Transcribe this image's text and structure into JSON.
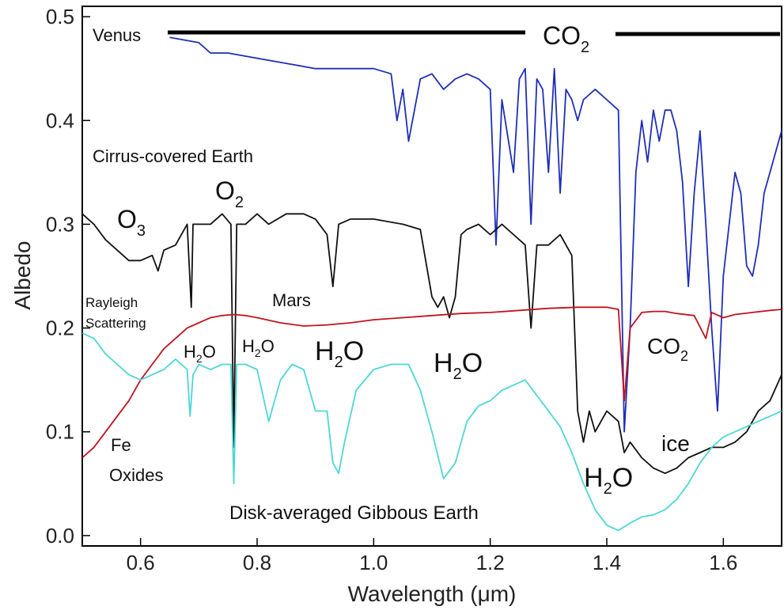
{
  "chart_data": {
    "type": "line",
    "xlabel": "Wavelength (μm)",
    "ylabel": "Albedo",
    "xlim": [
      0.5,
      1.7
    ],
    "ylim": [
      -0.01,
      0.51
    ],
    "xticks": [
      0.6,
      0.8,
      1.0,
      1.2,
      1.4,
      1.6
    ],
    "xtick_labels": [
      "0.6",
      "0.8",
      "1.0",
      "1.2",
      "1.4",
      "1.6"
    ],
    "yticks": [
      0.0,
      0.1,
      0.2,
      0.3,
      0.4,
      0.5
    ],
    "ytick_labels": [
      "0.0",
      "0.1",
      "0.2",
      "0.3",
      "0.4",
      "0.5"
    ],
    "grid": false,
    "series": [
      {
        "name": "Venus",
        "color": "#1f2fb8",
        "x": [
          0.65,
          0.7,
          0.72,
          0.75,
          0.8,
          0.85,
          0.9,
          0.95,
          1.0,
          1.03,
          1.04,
          1.05,
          1.06,
          1.08,
          1.1,
          1.12,
          1.14,
          1.16,
          1.18,
          1.2,
          1.21,
          1.22,
          1.24,
          1.25,
          1.26,
          1.27,
          1.28,
          1.29,
          1.3,
          1.31,
          1.32,
          1.33,
          1.34,
          1.35,
          1.36,
          1.38,
          1.4,
          1.42,
          1.43,
          1.44,
          1.45,
          1.46,
          1.47,
          1.48,
          1.49,
          1.5,
          1.51,
          1.52,
          1.53,
          1.54,
          1.55,
          1.56,
          1.57,
          1.58,
          1.59,
          1.6,
          1.61,
          1.62,
          1.63,
          1.64,
          1.65,
          1.66,
          1.67,
          1.68,
          1.69,
          1.7
        ],
        "y": [
          0.48,
          0.475,
          0.465,
          0.465,
          0.46,
          0.455,
          0.45,
          0.45,
          0.45,
          0.445,
          0.4,
          0.43,
          0.38,
          0.44,
          0.445,
          0.43,
          0.44,
          0.445,
          0.44,
          0.43,
          0.28,
          0.42,
          0.35,
          0.44,
          0.45,
          0.3,
          0.44,
          0.43,
          0.35,
          0.45,
          0.33,
          0.43,
          0.42,
          0.4,
          0.42,
          0.43,
          0.42,
          0.41,
          0.1,
          0.2,
          0.35,
          0.4,
          0.36,
          0.41,
          0.38,
          0.41,
          0.41,
          0.39,
          0.34,
          0.24,
          0.33,
          0.39,
          0.3,
          0.2,
          0.12,
          0.25,
          0.3,
          0.35,
          0.33,
          0.26,
          0.25,
          0.28,
          0.33,
          0.35,
          0.37,
          0.39
        ]
      },
      {
        "name": "Cirrus-covered Earth",
        "color": "#111111",
        "x": [
          0.5,
          0.52,
          0.54,
          0.56,
          0.58,
          0.6,
          0.62,
          0.63,
          0.64,
          0.66,
          0.68,
          0.687,
          0.69,
          0.7,
          0.72,
          0.74,
          0.755,
          0.76,
          0.765,
          0.78,
          0.8,
          0.82,
          0.85,
          0.88,
          0.9,
          0.92,
          0.93,
          0.94,
          0.96,
          1.0,
          1.05,
          1.08,
          1.1,
          1.11,
          1.12,
          1.13,
          1.14,
          1.15,
          1.16,
          1.18,
          1.2,
          1.22,
          1.24,
          1.26,
          1.27,
          1.28,
          1.3,
          1.32,
          1.34,
          1.35,
          1.36,
          1.37,
          1.38,
          1.4,
          1.42,
          1.43,
          1.44,
          1.46,
          1.48,
          1.5,
          1.52,
          1.54,
          1.56,
          1.58,
          1.6,
          1.62,
          1.64,
          1.66,
          1.68,
          1.7
        ],
        "y": [
          0.31,
          0.3,
          0.285,
          0.275,
          0.265,
          0.265,
          0.27,
          0.255,
          0.275,
          0.28,
          0.3,
          0.22,
          0.3,
          0.3,
          0.3,
          0.31,
          0.3,
          0.085,
          0.3,
          0.3,
          0.31,
          0.3,
          0.31,
          0.31,
          0.305,
          0.29,
          0.24,
          0.3,
          0.305,
          0.305,
          0.3,
          0.295,
          0.23,
          0.22,
          0.23,
          0.21,
          0.23,
          0.29,
          0.295,
          0.3,
          0.29,
          0.3,
          0.29,
          0.28,
          0.2,
          0.28,
          0.28,
          0.29,
          0.27,
          0.12,
          0.09,
          0.12,
          0.1,
          0.12,
          0.11,
          0.08,
          0.09,
          0.075,
          0.065,
          0.06,
          0.065,
          0.075,
          0.08,
          0.085,
          0.085,
          0.09,
          0.1,
          0.12,
          0.13,
          0.155
        ]
      },
      {
        "name": "Mars",
        "color": "#c0141e",
        "x": [
          0.5,
          0.52,
          0.54,
          0.56,
          0.58,
          0.6,
          0.62,
          0.64,
          0.66,
          0.68,
          0.7,
          0.72,
          0.74,
          0.76,
          0.78,
          0.8,
          0.84,
          0.88,
          0.92,
          0.96,
          1.0,
          1.05,
          1.1,
          1.15,
          1.2,
          1.25,
          1.3,
          1.35,
          1.4,
          1.42,
          1.43,
          1.44,
          1.46,
          1.48,
          1.5,
          1.52,
          1.55,
          1.57,
          1.58,
          1.6,
          1.62,
          1.65,
          1.68,
          1.7
        ],
        "y": [
          0.075,
          0.085,
          0.1,
          0.115,
          0.13,
          0.15,
          0.165,
          0.18,
          0.19,
          0.2,
          0.205,
          0.21,
          0.212,
          0.213,
          0.212,
          0.21,
          0.205,
          0.202,
          0.203,
          0.205,
          0.208,
          0.21,
          0.212,
          0.214,
          0.215,
          0.217,
          0.219,
          0.22,
          0.22,
          0.218,
          0.13,
          0.2,
          0.215,
          0.216,
          0.216,
          0.214,
          0.212,
          0.19,
          0.215,
          0.21,
          0.213,
          0.215,
          0.217,
          0.218
        ]
      },
      {
        "name": "Disk-averaged Gibbous Earth",
        "color": "#4fd6d6",
        "x": [
          0.5,
          0.52,
          0.54,
          0.56,
          0.58,
          0.6,
          0.62,
          0.64,
          0.66,
          0.68,
          0.685,
          0.69,
          0.7,
          0.72,
          0.74,
          0.755,
          0.76,
          0.765,
          0.78,
          0.8,
          0.82,
          0.84,
          0.86,
          0.88,
          0.9,
          0.92,
          0.93,
          0.94,
          0.95,
          0.97,
          1.0,
          1.03,
          1.06,
          1.08,
          1.1,
          1.12,
          1.14,
          1.16,
          1.18,
          1.2,
          1.22,
          1.24,
          1.26,
          1.28,
          1.3,
          1.32,
          1.34,
          1.36,
          1.38,
          1.4,
          1.42,
          1.44,
          1.46,
          1.48,
          1.5,
          1.52,
          1.54,
          1.56,
          1.58,
          1.6,
          1.62,
          1.64,
          1.66,
          1.68,
          1.7
        ],
        "y": [
          0.195,
          0.19,
          0.175,
          0.165,
          0.155,
          0.15,
          0.155,
          0.16,
          0.17,
          0.16,
          0.115,
          0.155,
          0.165,
          0.16,
          0.165,
          0.165,
          0.05,
          0.165,
          0.165,
          0.16,
          0.11,
          0.15,
          0.165,
          0.16,
          0.12,
          0.12,
          0.07,
          0.06,
          0.09,
          0.14,
          0.16,
          0.165,
          0.165,
          0.14,
          0.1,
          0.055,
          0.07,
          0.11,
          0.125,
          0.13,
          0.14,
          0.145,
          0.15,
          0.135,
          0.12,
          0.105,
          0.08,
          0.05,
          0.025,
          0.01,
          0.005,
          0.012,
          0.018,
          0.02,
          0.025,
          0.035,
          0.05,
          0.07,
          0.085,
          0.095,
          0.1,
          0.105,
          0.11,
          0.115,
          0.12
        ]
      }
    ],
    "annotations": [
      {
        "id": "venus",
        "text": "Venus",
        "color": "#3a6fc8"
      },
      {
        "id": "cirrus",
        "text": "Cirrus-covered Earth",
        "color": "#111111"
      },
      {
        "id": "mars",
        "text": "Mars",
        "color": "#c0141e"
      },
      {
        "id": "gibbous",
        "text": "Disk-averaged Gibbous Earth",
        "color": "#6fe0e0"
      },
      {
        "id": "rayleigh1",
        "text": "Rayleigh",
        "color": "#111111"
      },
      {
        "id": "rayleigh2",
        "text": "Scattering",
        "color": "#111111"
      },
      {
        "id": "fe1",
        "text": "Fe",
        "color": "#111111"
      },
      {
        "id": "fe2",
        "text": "Oxides",
        "color": "#111111"
      },
      {
        "id": "ice",
        "text": "ice",
        "color": "#111111"
      }
    ],
    "molecule_labels": [
      {
        "id": "co2-top",
        "main": "CO",
        "sub": "2"
      },
      {
        "id": "o3",
        "main": "O",
        "sub": "3"
      },
      {
        "id": "o2",
        "main": "O",
        "sub": "2"
      },
      {
        "id": "h2o-1",
        "main": "H",
        "sub": "2",
        "tail": "O"
      },
      {
        "id": "h2o-2",
        "main": "H",
        "sub": "2",
        "tail": "O"
      },
      {
        "id": "h2o-3",
        "main": "H",
        "sub": "2",
        "tail": "O"
      },
      {
        "id": "h2o-4",
        "main": "H",
        "sub": "2",
        "tail": "O"
      },
      {
        "id": "h2o-5",
        "main": "H",
        "sub": "2",
        "tail": "O"
      },
      {
        "id": "co2-right",
        "main": "CO",
        "sub": "2"
      }
    ]
  }
}
